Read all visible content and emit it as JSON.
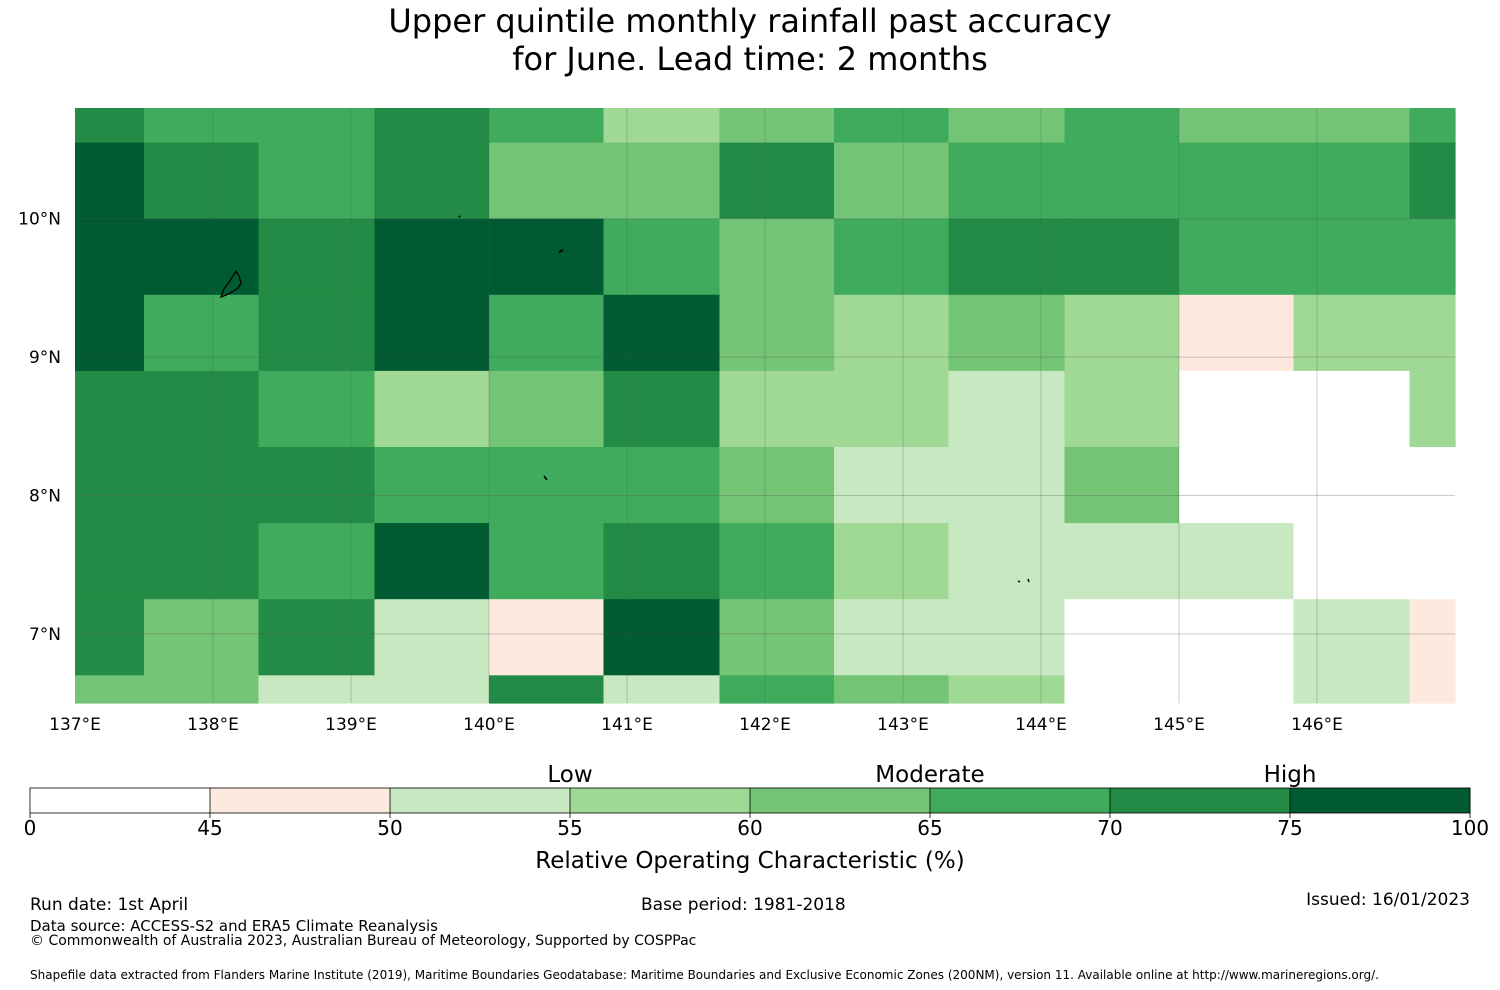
{
  "title": {
    "line1": "Upper quintile monthly rainfall past accuracy",
    "line2": "for June. Lead time: 2 months"
  },
  "map": {
    "lon_ticks": [
      "137°E",
      "138°E",
      "139°E",
      "140°E",
      "141°E",
      "142°E",
      "143°E",
      "144°E",
      "145°E",
      "146°E"
    ],
    "lat_ticks": [
      "10°N",
      "9°N",
      "8°N",
      "7°N"
    ],
    "lon_range": [
      137.0,
      147.0
    ],
    "lat_range": [
      6.5,
      10.8
    ],
    "col_edges_lon": [
      137.0,
      137.5,
      138.33,
      139.17,
      140.0,
      140.83,
      141.67,
      142.5,
      143.33,
      144.17,
      145.0,
      145.83,
      146.67,
      147.0
    ],
    "row_edges_lat": [
      10.8,
      10.55,
      10.0,
      9.45,
      8.9,
      8.35,
      7.8,
      7.25,
      6.7,
      6.5
    ],
    "grid_categories": [
      [
        6,
        5,
        5,
        6,
        5,
        3,
        4,
        5,
        4,
        5,
        4,
        4,
        5
      ],
      [
        7,
        6,
        5,
        6,
        4,
        4,
        6,
        4,
        5,
        5,
        5,
        5,
        6
      ],
      [
        7,
        7,
        6,
        7,
        7,
        5,
        4,
        5,
        6,
        6,
        5,
        5,
        5
      ],
      [
        7,
        5,
        6,
        7,
        5,
        7,
        4,
        3,
        4,
        3,
        1,
        3,
        3
      ],
      [
        6,
        6,
        5,
        3,
        4,
        6,
        3,
        3,
        2,
        3,
        0,
        0,
        3
      ],
      [
        6,
        6,
        6,
        5,
        5,
        5,
        4,
        2,
        2,
        4,
        0,
        0,
        0
      ],
      [
        6,
        6,
        5,
        7,
        5,
        6,
        5,
        3,
        2,
        2,
        2,
        0,
        0
      ],
      [
        6,
        4,
        6,
        2,
        1,
        7,
        4,
        2,
        2,
        0,
        0,
        2,
        1
      ],
      [
        4,
        4,
        2,
        2,
        6,
        2,
        5,
        4,
        3,
        0,
        0,
        2,
        1
      ]
    ]
  },
  "colorbar": {
    "ticks": [
      "0",
      "45",
      "50",
      "55",
      "60",
      "65",
      "70",
      "75",
      "100"
    ],
    "colors": [
      "#ffffff",
      "#fee9de",
      "#c7e8c0",
      "#a0d995",
      "#74c476",
      "#41ab5d",
      "#238b45",
      "#005a32"
    ],
    "category_labels": [
      "Low",
      "Moderate",
      "High"
    ],
    "axis_title": "Relative Operating Characteristic (%)"
  },
  "footer": {
    "run_date": "Run date: 1st April",
    "data_source": "Data source: ACCESS-S2 and ERA5 Climate Reanalysis",
    "copyright": "© Commonwealth of Australia 2023, Australian Bureau of Meteorology, Supported by COSPPac",
    "base_period": "Base period: 1981-2018",
    "issued": "Issued: 16/01/2023",
    "shapefile": "Shapefile data extracted from Flanders Marine Institute (2019), Maritime Boundaries Geodatabase: Maritime Boundaries and Exclusive Economic Zones (200NM), version 11. Available online at http://www.marineregions.org/."
  }
}
